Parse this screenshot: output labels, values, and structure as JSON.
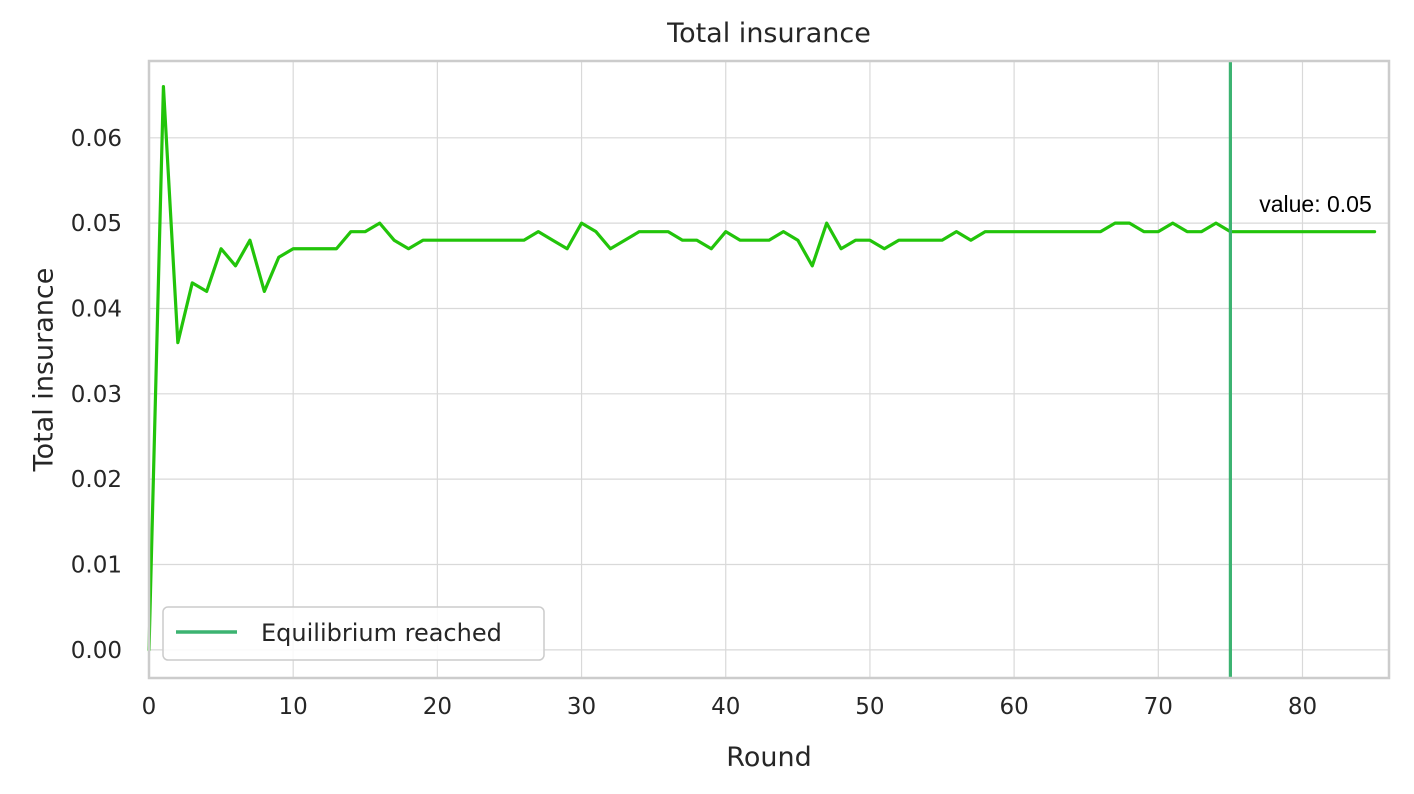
{
  "chart_data": {
    "type": "line",
    "title": "Total insurance",
    "xlabel": "Round",
    "ylabel": "Total insurance",
    "xlim": [
      0,
      86
    ],
    "ylim": [
      -0.0033,
      0.069
    ],
    "xticks": [
      0,
      10,
      20,
      30,
      40,
      50,
      60,
      70,
      80
    ],
    "yticks": [
      0.0,
      0.01,
      0.02,
      0.03,
      0.04,
      0.05,
      0.06
    ],
    "ytick_labels": [
      "0.00",
      "0.01",
      "0.02",
      "0.03",
      "0.04",
      "0.05",
      "0.06"
    ],
    "grid": true,
    "legend_position": "lower-left",
    "legend": [
      {
        "label": "Equilibrium reached",
        "color": "#3cb371"
      }
    ],
    "series": [
      {
        "color": "#22c40a",
        "x": [
          0,
          1,
          2,
          3,
          4,
          5,
          6,
          7,
          8,
          9,
          10,
          11,
          12,
          13,
          14,
          15,
          16,
          17,
          18,
          19,
          20,
          21,
          22,
          23,
          24,
          25,
          26,
          27,
          28,
          29,
          30,
          31,
          32,
          33,
          34,
          35,
          36,
          37,
          38,
          39,
          40,
          41,
          42,
          43,
          44,
          45,
          46,
          47,
          48,
          49,
          50,
          51,
          52,
          53,
          54,
          55,
          56,
          57,
          58,
          59,
          60,
          61,
          62,
          63,
          64,
          65,
          66,
          67,
          68,
          69,
          70,
          71,
          72,
          73,
          74,
          75,
          76,
          77,
          78,
          79,
          80,
          81,
          82,
          83,
          84,
          85
        ],
        "y": [
          0.0,
          0.066,
          0.036,
          0.043,
          0.042,
          0.047,
          0.045,
          0.048,
          0.042,
          0.046,
          0.047,
          0.047,
          0.047,
          0.047,
          0.049,
          0.049,
          0.05,
          0.048,
          0.047,
          0.048,
          0.048,
          0.048,
          0.048,
          0.048,
          0.048,
          0.048,
          0.048,
          0.049,
          0.048,
          0.047,
          0.05,
          0.049,
          0.047,
          0.048,
          0.049,
          0.049,
          0.049,
          0.048,
          0.048,
          0.047,
          0.049,
          0.048,
          0.048,
          0.048,
          0.049,
          0.048,
          0.045,
          0.05,
          0.047,
          0.048,
          0.048,
          0.047,
          0.048,
          0.048,
          0.048,
          0.048,
          0.049,
          0.048,
          0.049,
          0.049,
          0.049,
          0.049,
          0.049,
          0.049,
          0.049,
          0.049,
          0.049,
          0.05,
          0.05,
          0.049,
          0.049,
          0.05,
          0.049,
          0.049,
          0.05,
          0.049,
          0.049,
          0.049,
          0.049,
          0.049,
          0.049,
          0.049,
          0.049,
          0.049,
          0.049,
          0.049
        ]
      }
    ],
    "vline": {
      "x": 75,
      "color": "#3cb371"
    },
    "annotation": {
      "text": "value: 0.05",
      "x": 77,
      "y": 0.0505
    }
  }
}
